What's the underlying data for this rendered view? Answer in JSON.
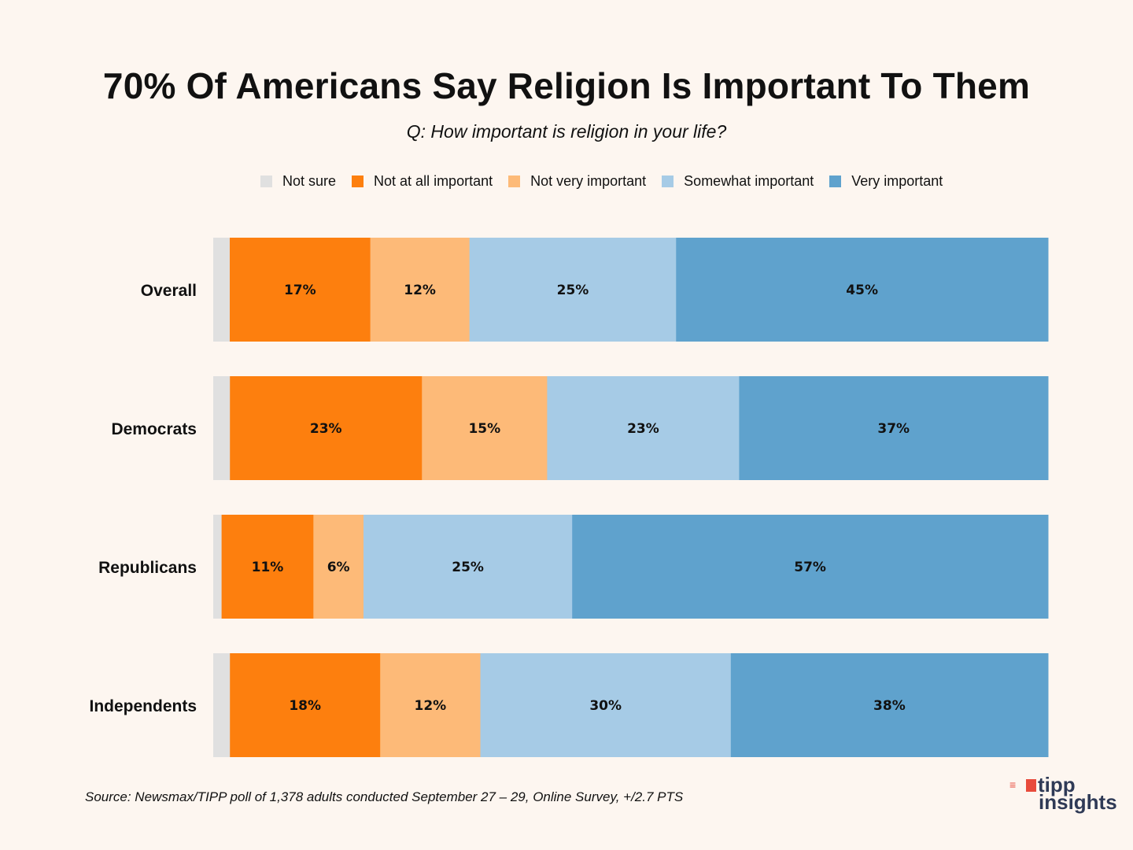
{
  "chart_data": {
    "type": "bar",
    "orientation": "horizontal",
    "stacked": true,
    "normalized": true,
    "title": "70% Of Americans Say Religion Is Important To Them",
    "subtitle": "Q: How important is religion in your life?",
    "xlabel": "",
    "ylabel": "",
    "xlim": [
      0,
      100
    ],
    "grid": false,
    "legend_position": "top",
    "categories": [
      "Overall",
      "Democrats",
      "Republicans",
      "Independents"
    ],
    "series": [
      {
        "name": "Not sure",
        "color": "#e0e0e0",
        "values": [
          2,
          2,
          1,
          2
        ],
        "labels": [
          "",
          "",
          "",
          ""
        ]
      },
      {
        "name": "Not at all important",
        "color": "#fd7f0e",
        "values": [
          17,
          23,
          11,
          18
        ],
        "labels": [
          "17%",
          "23%",
          "11%",
          "18%"
        ]
      },
      {
        "name": "Not very important",
        "color": "#fdba78",
        "values": [
          12,
          15,
          6,
          12
        ],
        "labels": [
          "12%",
          "15%",
          "6%",
          "12%"
        ]
      },
      {
        "name": "Somewhat important",
        "color": "#a6cbe6",
        "values": [
          25,
          23,
          25,
          30
        ],
        "labels": [
          "25%",
          "23%",
          "25%",
          "30%"
        ]
      },
      {
        "name": "Very important",
        "color": "#5fa2cd",
        "values": [
          45,
          37,
          57,
          38
        ],
        "labels": [
          "45%",
          "37%",
          "57%",
          "38%"
        ]
      }
    ],
    "source": "Source: Newsmax/TIPP poll of 1,378 adults conducted September 27 – 29, Online Survey, +/2.7 PTS"
  },
  "logo": {
    "line1": "tipp",
    "line2": "insights",
    "rays": "≡"
  }
}
